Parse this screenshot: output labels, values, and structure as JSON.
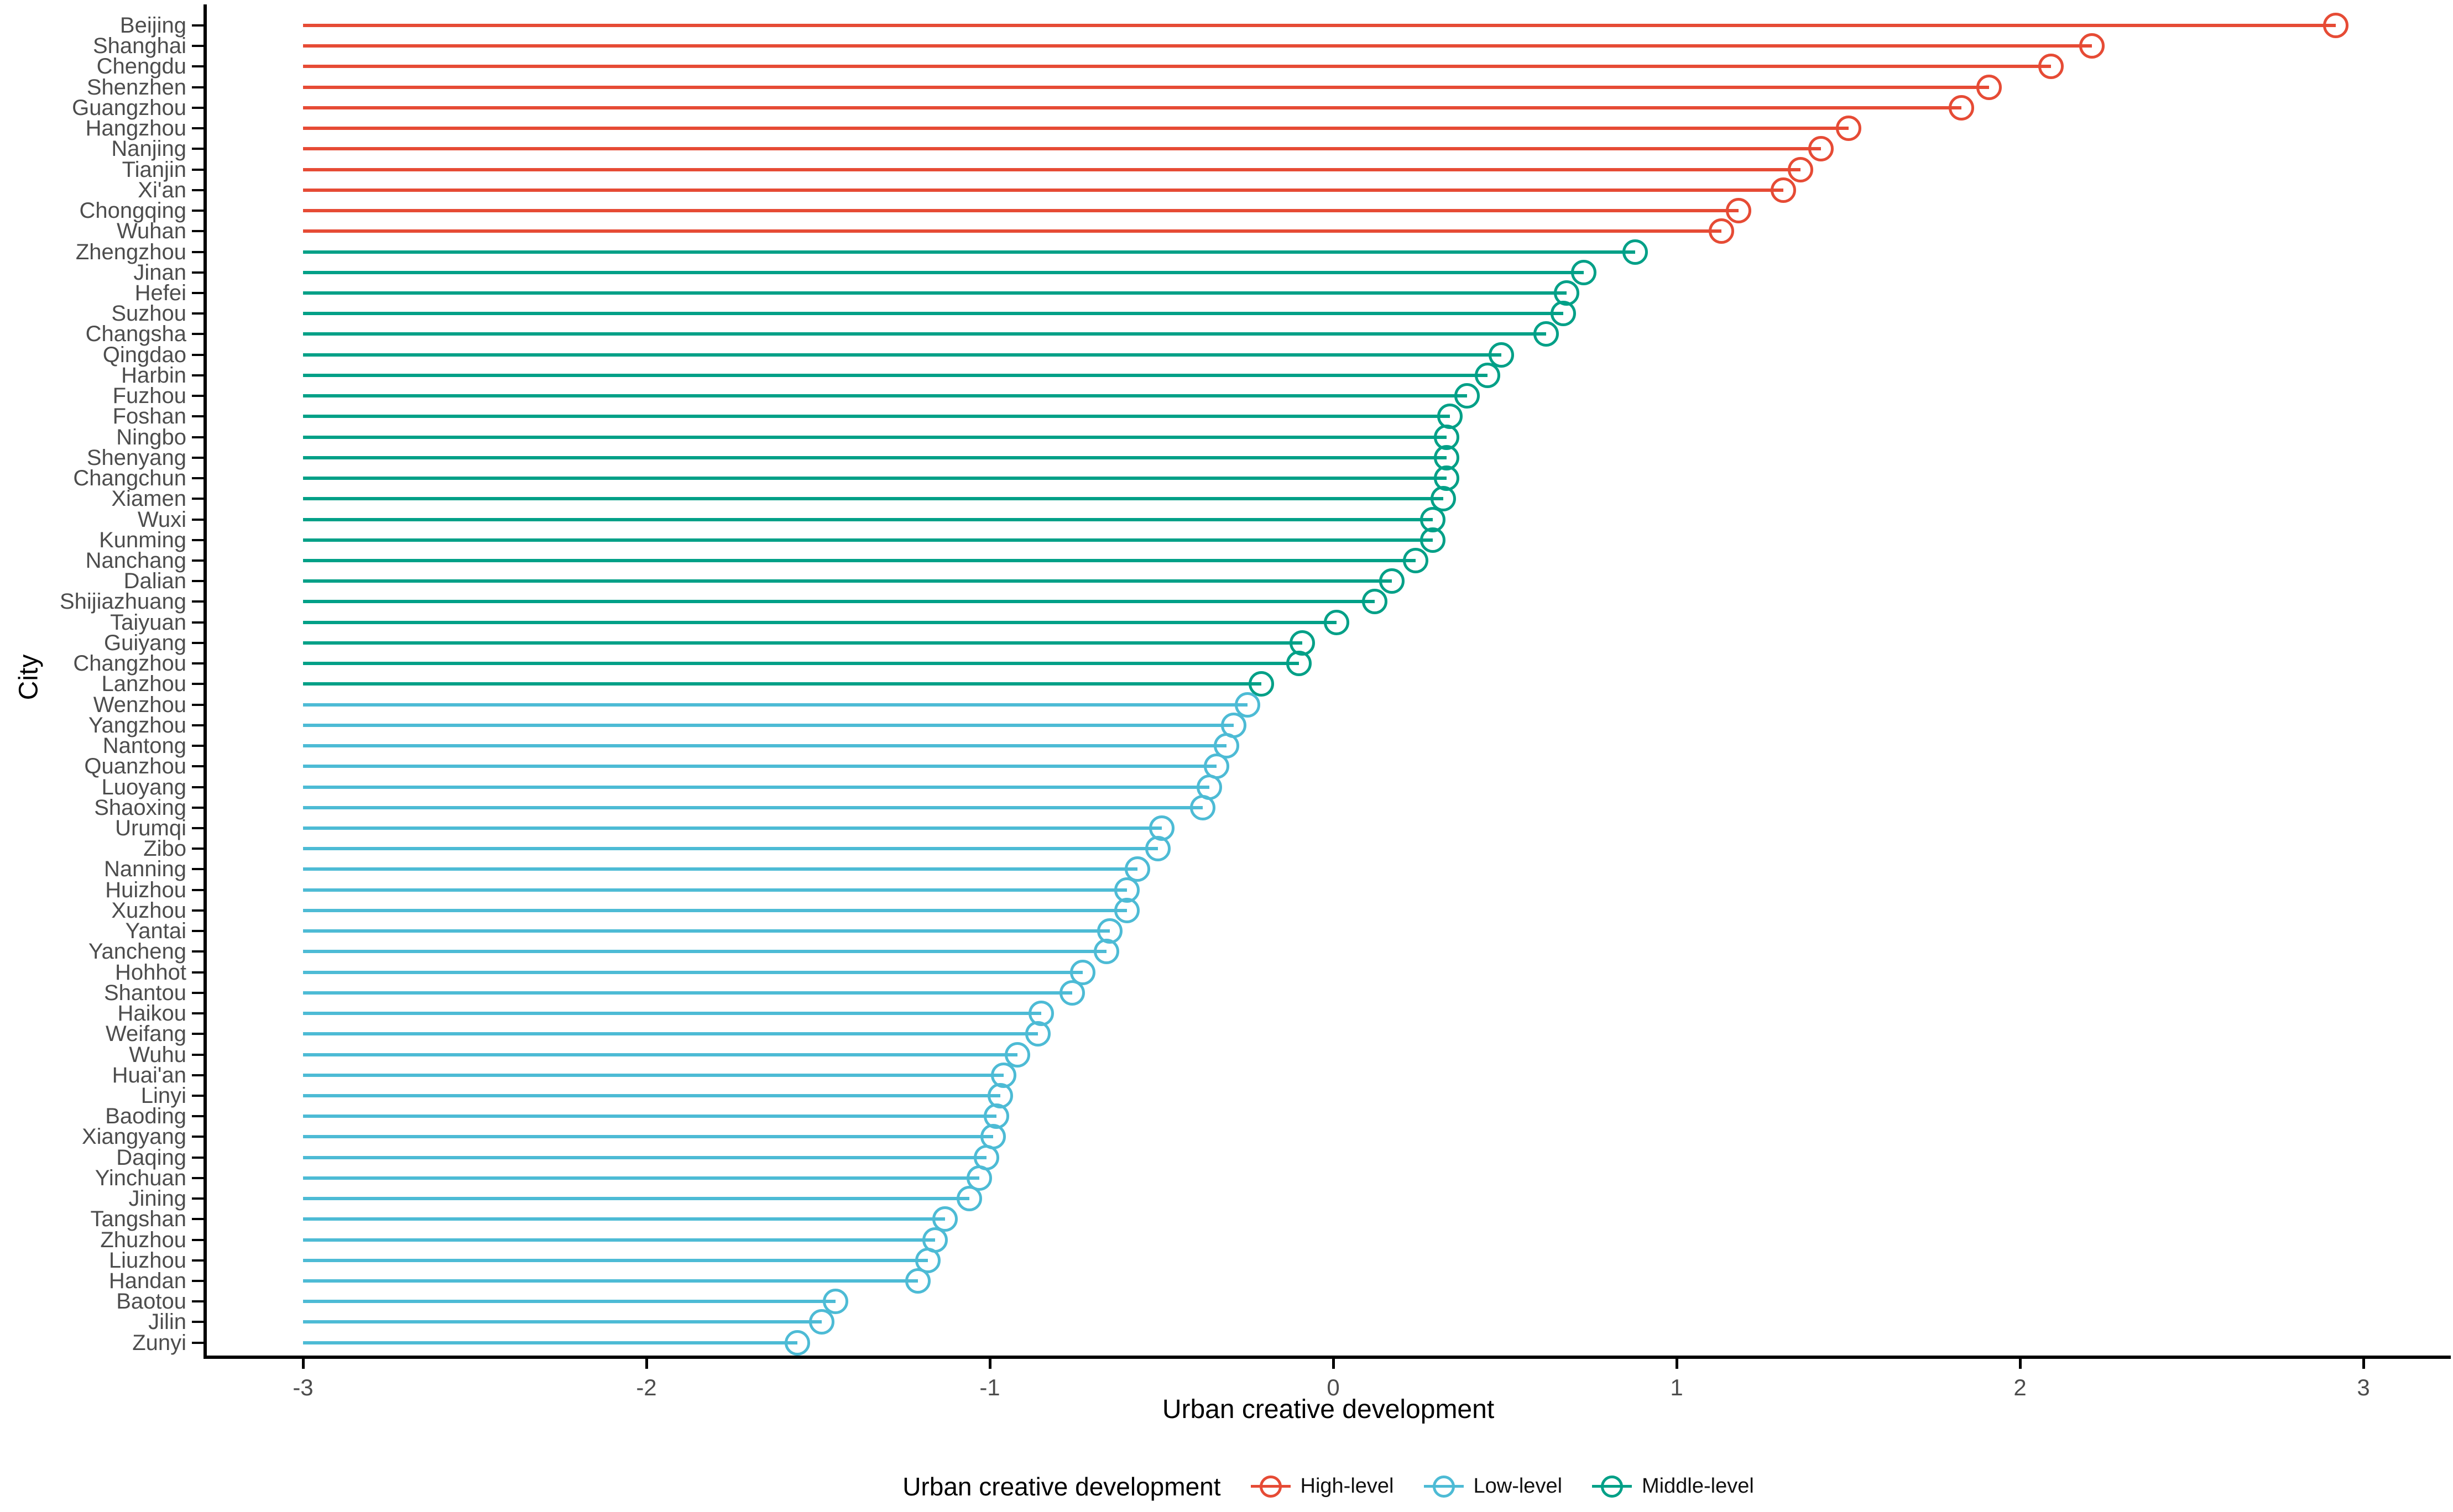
{
  "figure": {
    "background": "#ffffff",
    "x_axis": {
      "title": "Urban creative development",
      "tick_labels": [
        "-3",
        "-2",
        "-1",
        "0",
        "1",
        "2",
        "3"
      ]
    },
    "y_axis": {
      "title": "City"
    },
    "legend": {
      "title": "Urban creative development",
      "items": [
        {
          "label": "High-level",
          "color": "#E64B35"
        },
        {
          "label": "Low-level",
          "color": "#4DBBD5"
        },
        {
          "label": "Middle-level",
          "color": "#00A087"
        }
      ]
    }
  },
  "chart_data": {
    "type": "scatter",
    "variant": "horizontal-lollipop",
    "title": "",
    "xlabel": "Urban creative development",
    "ylabel": "City",
    "xlim": [
      -3.3,
      3.1
    ],
    "x_ticks": [
      -3,
      -2,
      -1,
      0,
      1,
      2,
      3
    ],
    "stem_start_x": -3,
    "grid": false,
    "legend_position": "bottom",
    "points": [
      {
        "city": "Beijing",
        "value": 2.92,
        "level": "High-level"
      },
      {
        "city": "Shanghai",
        "value": 2.21,
        "level": "High-level"
      },
      {
        "city": "Chengdu",
        "value": 2.09,
        "level": "High-level"
      },
      {
        "city": "Shenzhen",
        "value": 1.91,
        "level": "High-level"
      },
      {
        "city": "Guangzhou",
        "value": 1.83,
        "level": "High-level"
      },
      {
        "city": "Hangzhou",
        "value": 1.5,
        "level": "High-level"
      },
      {
        "city": "Nanjing",
        "value": 1.42,
        "level": "High-level"
      },
      {
        "city": "Tianjin",
        "value": 1.36,
        "level": "High-level"
      },
      {
        "city": "Xi'an",
        "value": 1.31,
        "level": "High-level"
      },
      {
        "city": "Chongqing",
        "value": 1.18,
        "level": "High-level"
      },
      {
        "city": "Wuhan",
        "value": 1.13,
        "level": "High-level"
      },
      {
        "city": "Zhengzhou",
        "value": 0.88,
        "level": "Middle-level"
      },
      {
        "city": "Jinan",
        "value": 0.73,
        "level": "Middle-level"
      },
      {
        "city": "Hefei",
        "value": 0.68,
        "level": "Middle-level"
      },
      {
        "city": "Suzhou",
        "value": 0.67,
        "level": "Middle-level"
      },
      {
        "city": "Changsha",
        "value": 0.62,
        "level": "Middle-level"
      },
      {
        "city": "Qingdao",
        "value": 0.49,
        "level": "Middle-level"
      },
      {
        "city": "Harbin",
        "value": 0.45,
        "level": "Middle-level"
      },
      {
        "city": "Fuzhou",
        "value": 0.39,
        "level": "Middle-level"
      },
      {
        "city": "Foshan",
        "value": 0.34,
        "level": "Middle-level"
      },
      {
        "city": "Ningbo",
        "value": 0.33,
        "level": "Middle-level"
      },
      {
        "city": "Shenyang",
        "value": 0.33,
        "level": "Middle-level"
      },
      {
        "city": "Changchun",
        "value": 0.33,
        "level": "Middle-level"
      },
      {
        "city": "Xiamen",
        "value": 0.32,
        "level": "Middle-level"
      },
      {
        "city": "Wuxi",
        "value": 0.29,
        "level": "Middle-level"
      },
      {
        "city": "Kunming",
        "value": 0.29,
        "level": "Middle-level"
      },
      {
        "city": "Nanchang",
        "value": 0.24,
        "level": "Middle-level"
      },
      {
        "city": "Dalian",
        "value": 0.17,
        "level": "Middle-level"
      },
      {
        "city": "Shijiazhuang",
        "value": 0.12,
        "level": "Middle-level"
      },
      {
        "city": "Taiyuan",
        "value": 0.01,
        "level": "Middle-level"
      },
      {
        "city": "Guiyang",
        "value": -0.09,
        "level": "Middle-level"
      },
      {
        "city": "Changzhou",
        "value": -0.1,
        "level": "Middle-level"
      },
      {
        "city": "Lanzhou",
        "value": -0.21,
        "level": "Middle-level"
      },
      {
        "city": "Wenzhou",
        "value": -0.25,
        "level": "Low-level"
      },
      {
        "city": "Yangzhou",
        "value": -0.29,
        "level": "Low-level"
      },
      {
        "city": "Nantong",
        "value": -0.31,
        "level": "Low-level"
      },
      {
        "city": "Quanzhou",
        "value": -0.34,
        "level": "Low-level"
      },
      {
        "city": "Luoyang",
        "value": -0.36,
        "level": "Low-level"
      },
      {
        "city": "Shaoxing",
        "value": -0.38,
        "level": "Low-level"
      },
      {
        "city": "Urumqi",
        "value": -0.5,
        "level": "Low-level"
      },
      {
        "city": "Zibo",
        "value": -0.51,
        "level": "Low-level"
      },
      {
        "city": "Nanning",
        "value": -0.57,
        "level": "Low-level"
      },
      {
        "city": "Huizhou",
        "value": -0.6,
        "level": "Low-level"
      },
      {
        "city": "Xuzhou",
        "value": -0.6,
        "level": "Low-level"
      },
      {
        "city": "Yantai",
        "value": -0.65,
        "level": "Low-level"
      },
      {
        "city": "Yancheng",
        "value": -0.66,
        "level": "Low-level"
      },
      {
        "city": "Hohhot",
        "value": -0.73,
        "level": "Low-level"
      },
      {
        "city": "Shantou",
        "value": -0.76,
        "level": "Low-level"
      },
      {
        "city": "Haikou",
        "value": -0.85,
        "level": "Low-level"
      },
      {
        "city": "Weifang",
        "value": -0.86,
        "level": "Low-level"
      },
      {
        "city": "Wuhu",
        "value": -0.92,
        "level": "Low-level"
      },
      {
        "city": "Huai'an",
        "value": -0.96,
        "level": "Low-level"
      },
      {
        "city": "Linyi",
        "value": -0.97,
        "level": "Low-level"
      },
      {
        "city": "Baoding",
        "value": -0.98,
        "level": "Low-level"
      },
      {
        "city": "Xiangyang",
        "value": -0.99,
        "level": "Low-level"
      },
      {
        "city": "Daqing",
        "value": -1.01,
        "level": "Low-level"
      },
      {
        "city": "Yinchuan",
        "value": -1.03,
        "level": "Low-level"
      },
      {
        "city": "Jining",
        "value": -1.06,
        "level": "Low-level"
      },
      {
        "city": "Tangshan",
        "value": -1.13,
        "level": "Low-level"
      },
      {
        "city": "Zhuzhou",
        "value": -1.16,
        "level": "Low-level"
      },
      {
        "city": "Liuzhou",
        "value": -1.18,
        "level": "Low-level"
      },
      {
        "city": "Handan",
        "value": -1.21,
        "level": "Low-level"
      },
      {
        "city": "Baotou",
        "value": -1.45,
        "level": "Low-level"
      },
      {
        "city": "Jilin",
        "value": -1.49,
        "level": "Low-level"
      },
      {
        "city": "Zunyi",
        "value": -1.56,
        "level": "Low-level"
      }
    ]
  }
}
